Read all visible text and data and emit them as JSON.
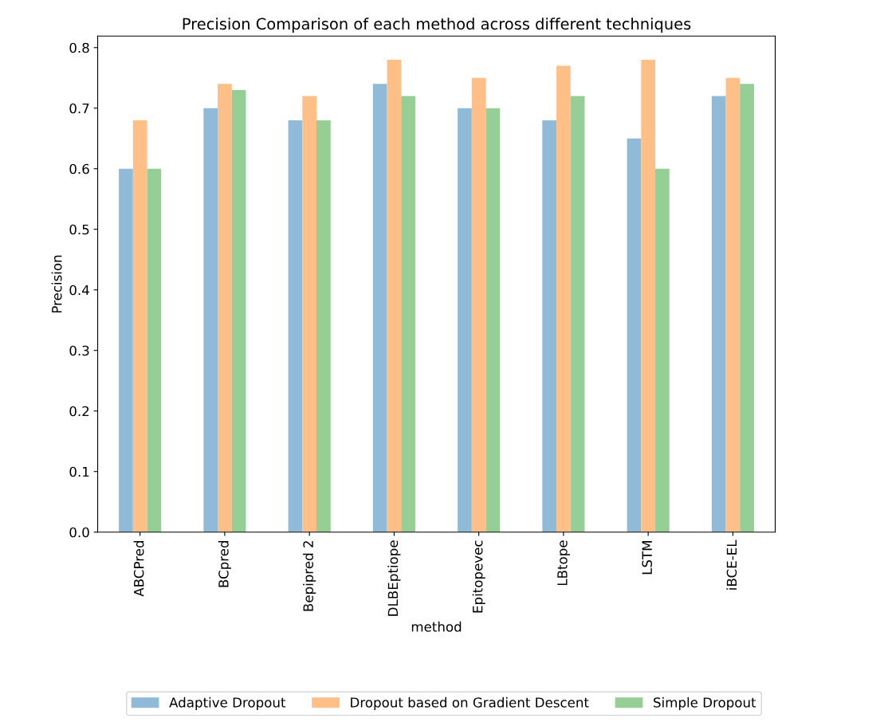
{
  "chart_data": {
    "type": "bar",
    "title": "Precision Comparison of each method across different techniques",
    "xlabel": "method",
    "ylabel": "Precision",
    "categories": [
      "ABCPred",
      "BCpred",
      "Bepipred 2",
      "DLBEptiope",
      "Epitopevec",
      "LBtope",
      "LSTM",
      "iBCE-EL"
    ],
    "series": [
      {
        "name": "Adaptive Dropout",
        "color": "#8fbbd9",
        "values": [
          0.6,
          0.7,
          0.68,
          0.74,
          0.7,
          0.68,
          0.65,
          0.72
        ]
      },
      {
        "name": "Dropout based on Gradient Descent",
        "color": "#ffbf86",
        "values": [
          0.68,
          0.74,
          0.72,
          0.78,
          0.75,
          0.77,
          0.78,
          0.75
        ]
      },
      {
        "name": "Simple Dropout",
        "color": "#95cf95",
        "values": [
          0.6,
          0.73,
          0.68,
          0.72,
          0.7,
          0.72,
          0.6,
          0.74
        ]
      }
    ],
    "ylim": [
      0,
      0.819
    ],
    "yticks": [
      {
        "value": 0,
        "label": "0.0"
      },
      0.1,
      0.2,
      0.3,
      0.4,
      0.5,
      0.6,
      0.7,
      0.8
    ],
    "grid": false,
    "legend": "bottom"
  }
}
